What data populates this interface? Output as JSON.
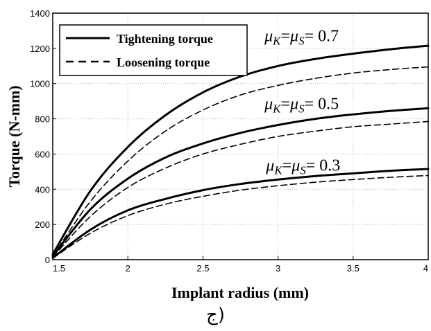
{
  "chart_data": {
    "type": "line",
    "xlabel": "Implant radius (mm)",
    "ylabel": "Torque (N-mm)",
    "xlim": [
      1.5,
      4
    ],
    "ylim": [
      0,
      1400
    ],
    "x_ticks": [
      "1.5",
      "2",
      "2.5",
      "3",
      "3.5",
      "4"
    ],
    "y_ticks": [
      "0",
      "200",
      "400",
      "600",
      "800",
      "1000",
      "1200",
      "1400"
    ],
    "grid": true,
    "legend_position": "top-left",
    "legend": [
      {
        "label": "Tightening torque",
        "style": "solid"
      },
      {
        "label": "Loosening torque",
        "style": "dashed"
      }
    ],
    "x": [
      1.5,
      1.75,
      2.0,
      2.25,
      2.5,
      2.75,
      3.0,
      3.25,
      3.5,
      3.75,
      4.0
    ],
    "series": [
      {
        "group": "0.7",
        "style": "solid",
        "values": [
          30,
          390,
          640,
          820,
          950,
          1040,
          1100,
          1140,
          1170,
          1195,
          1215
        ]
      },
      {
        "group": "0.7",
        "style": "dashed",
        "values": [
          20,
          330,
          560,
          730,
          850,
          935,
          990,
          1030,
          1060,
          1080,
          1095
        ]
      },
      {
        "group": "0.5",
        "style": "solid",
        "values": [
          20,
          285,
          460,
          580,
          660,
          720,
          765,
          800,
          825,
          845,
          860
        ]
      },
      {
        "group": "0.5",
        "style": "dashed",
        "values": [
          15,
          245,
          410,
          520,
          600,
          655,
          700,
          730,
          755,
          770,
          785
        ]
      },
      {
        "group": "0.3",
        "style": "solid",
        "values": [
          10,
          170,
          280,
          345,
          395,
          430,
          455,
          475,
          490,
          505,
          515
        ]
      },
      {
        "group": "0.3",
        "style": "dashed",
        "values": [
          8,
          150,
          250,
          315,
          360,
          395,
          420,
          440,
          455,
          468,
          478
        ]
      }
    ],
    "annotations": [
      {
        "mu": "μ",
        "k": "K",
        "eq1": "=",
        "s": "S",
        "eq2": "= 0.7",
        "x": 2.91,
        "y": 1240
      },
      {
        "mu": "μ",
        "k": "K",
        "eq1": "=",
        "s": "S",
        "eq2": "= 0.5",
        "x": 2.91,
        "y": 855
      },
      {
        "mu": "μ",
        "k": "K",
        "eq1": "=",
        "s": "S",
        "eq2": "= 0.3",
        "x": 2.92,
        "y": 505
      }
    ]
  },
  "caption": "ج)"
}
